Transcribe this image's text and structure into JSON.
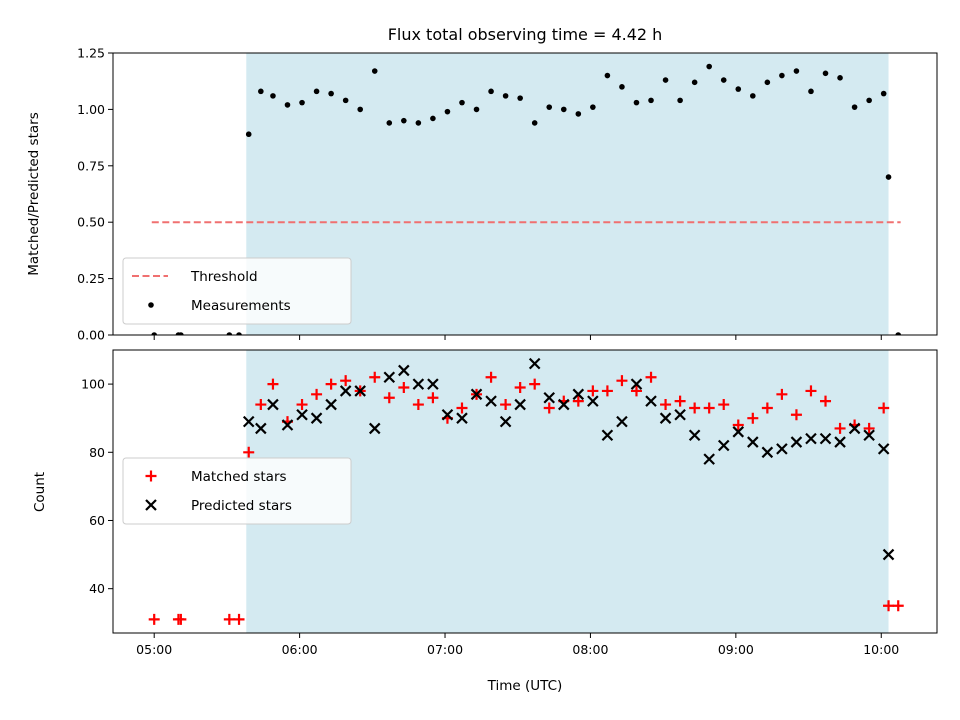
{
  "chart_data": [
    {
      "type": "scatter",
      "title": "Flux total observing time = 4.42 h",
      "ylabel": "Matched/Predicted stars",
      "xlabel": "",
      "ylim": [
        0,
        1.25
      ],
      "y_ticks": [
        "0.00",
        "0.25",
        "0.50",
        "0.75",
        "1.00",
        "1.25"
      ],
      "shaded_span": {
        "start": "05:38",
        "end": "10:03",
        "color": "#d4eaf1"
      },
      "legend_position": "lower-left",
      "threshold": {
        "name": "Threshold",
        "value": 0.5,
        "start": "04:59",
        "end": "10:08",
        "color": "#f07070"
      },
      "series": [
        {
          "name": "Measurements",
          "marker": "dot",
          "color": "#000000",
          "x": [
            "05:00",
            "05:10",
            "05:11",
            "05:31",
            "05:35",
            "05:39",
            "05:44",
            "05:49",
            "05:55",
            "06:01",
            "06:07",
            "06:13",
            "06:19",
            "06:25",
            "06:31",
            "06:37",
            "06:43",
            "06:49",
            "06:55",
            "07:01",
            "07:07",
            "07:13",
            "07:19",
            "07:25",
            "07:31",
            "07:37",
            "07:43",
            "07:49",
            "07:55",
            "08:01",
            "08:07",
            "08:13",
            "08:19",
            "08:25",
            "08:31",
            "08:37",
            "08:43",
            "08:49",
            "08:55",
            "09:01",
            "09:07",
            "09:13",
            "09:19",
            "09:25",
            "09:31",
            "09:37",
            "09:43",
            "09:49",
            "09:55",
            "10:01",
            "10:03",
            "10:07"
          ],
          "y": [
            0.0,
            0.0,
            0.0,
            0.0,
            0.0,
            0.89,
            1.08,
            1.06,
            1.02,
            1.03,
            1.08,
            1.07,
            1.04,
            1.0,
            1.17,
            0.94,
            0.95,
            0.94,
            0.96,
            0.99,
            1.03,
            1.0,
            1.08,
            1.06,
            1.05,
            0.94,
            1.01,
            1.0,
            0.98,
            1.01,
            1.15,
            1.1,
            1.03,
            1.04,
            1.13,
            1.04,
            1.12,
            1.19,
            1.13,
            1.09,
            1.06,
            1.12,
            1.15,
            1.17,
            1.08,
            1.16,
            1.14,
            1.01,
            1.04,
            1.07,
            0.7,
            0.0
          ]
        }
      ]
    },
    {
      "type": "scatter",
      "title": "",
      "xlabel": "Time (UTC)",
      "ylabel": "Count",
      "ylim": [
        27,
        110
      ],
      "y_ticks": [
        "40",
        "60",
        "80",
        "100"
      ],
      "x_ticks": [
        "05:00",
        "06:00",
        "07:00",
        "08:00",
        "09:00",
        "10:00"
      ],
      "shaded_span": {
        "start": "05:38",
        "end": "10:03",
        "color": "#d4eaf1"
      },
      "legend_position": "center-left",
      "series": [
        {
          "name": "Matched stars",
          "marker": "plus",
          "color": "#ff0000",
          "x": [
            "05:00",
            "05:10",
            "05:11",
            "05:31",
            "05:35",
            "05:39",
            "05:44",
            "05:49",
            "05:55",
            "06:01",
            "06:07",
            "06:13",
            "06:19",
            "06:25",
            "06:31",
            "06:37",
            "06:43",
            "06:49",
            "06:55",
            "07:01",
            "07:07",
            "07:13",
            "07:19",
            "07:25",
            "07:31",
            "07:37",
            "07:43",
            "07:49",
            "07:55",
            "08:01",
            "08:07",
            "08:13",
            "08:19",
            "08:25",
            "08:31",
            "08:37",
            "08:43",
            "08:49",
            "08:55",
            "09:01",
            "09:07",
            "09:13",
            "09:19",
            "09:25",
            "09:31",
            "09:37",
            "09:43",
            "09:49",
            "09:55",
            "10:01",
            "10:03",
            "10:07"
          ],
          "y": [
            31,
            31,
            31,
            31,
            31,
            80,
            94,
            100,
            89,
            94,
            97,
            100,
            101,
            98,
            102,
            96,
            99,
            94,
            96,
            90,
            93,
            97,
            102,
            94,
            99,
            100,
            93,
            95,
            95,
            98,
            98,
            101,
            98,
            102,
            94,
            95,
            93,
            93,
            94,
            88,
            90,
            93,
            97,
            91,
            98,
            95,
            87,
            88,
            87,
            93,
            35,
            35
          ]
        },
        {
          "name": "Predicted stars",
          "marker": "x",
          "color": "#000000",
          "x": [
            "05:39",
            "05:44",
            "05:49",
            "05:55",
            "06:01",
            "06:07",
            "06:13",
            "06:19",
            "06:25",
            "06:31",
            "06:37",
            "06:43",
            "06:49",
            "06:55",
            "07:01",
            "07:07",
            "07:13",
            "07:19",
            "07:25",
            "07:31",
            "07:37",
            "07:43",
            "07:49",
            "07:55",
            "08:01",
            "08:07",
            "08:13",
            "08:19",
            "08:25",
            "08:31",
            "08:37",
            "08:43",
            "08:49",
            "08:55",
            "09:01",
            "09:07",
            "09:13",
            "09:19",
            "09:25",
            "09:31",
            "09:37",
            "09:43",
            "09:49",
            "09:55",
            "10:01",
            "10:03"
          ],
          "y": [
            89,
            87,
            94,
            88,
            91,
            90,
            94,
            98,
            98,
            87,
            102,
            104,
            100,
            100,
            91,
            90,
            97,
            95,
            89,
            94,
            106,
            96,
            94,
            97,
            95,
            85,
            89,
            100,
            95,
            90,
            91,
            85,
            78,
            82,
            86,
            83,
            80,
            81,
            83,
            84,
            84,
            83,
            87,
            85,
            81,
            50
          ]
        }
      ]
    }
  ]
}
